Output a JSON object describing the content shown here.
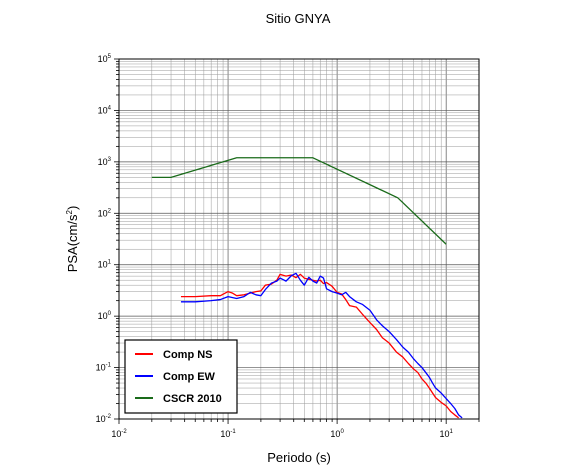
{
  "chart_data": {
    "type": "line",
    "title": "Sitio GNYA",
    "xlabel": "Periodo (s)",
    "ylabel_base": "PSA(cm/s",
    "ylabel_exp": "2",
    "ylabel_close": ")",
    "x_scale": "log",
    "y_scale": "log",
    "xlim": [
      0.01,
      20
    ],
    "ylim": [
      0.01,
      100000
    ],
    "grid": true,
    "legend_position": "bottom-left",
    "x_ticks": [
      {
        "base": "10",
        "exp": "-2",
        "value": 0.01
      },
      {
        "base": "10",
        "exp": "-1",
        "value": 0.1
      },
      {
        "base": "10",
        "exp": "0",
        "value": 1
      },
      {
        "base": "10",
        "exp": "1",
        "value": 10
      }
    ],
    "y_ticks": [
      {
        "base": "10",
        "exp": "-2",
        "value": 0.01
      },
      {
        "base": "10",
        "exp": "-1",
        "value": 0.1
      },
      {
        "base": "10",
        "exp": "0",
        "value": 1
      },
      {
        "base": "10",
        "exp": "1",
        "value": 10
      },
      {
        "base": "10",
        "exp": "2",
        "value": 100
      },
      {
        "base": "10",
        "exp": "3",
        "value": 1000
      },
      {
        "base": "10",
        "exp": "4",
        "value": 10000
      },
      {
        "base": "10",
        "exp": "5",
        "value": 100000
      }
    ],
    "series": [
      {
        "name": "Comp NS",
        "color": "#ff0000",
        "x": [
          0.037,
          0.05,
          0.07,
          0.085,
          0.1,
          0.11,
          0.12,
          0.14,
          0.16,
          0.18,
          0.2,
          0.22,
          0.25,
          0.28,
          0.3,
          0.34,
          0.38,
          0.42,
          0.46,
          0.5,
          0.55,
          0.6,
          0.65,
          0.7,
          0.75,
          0.8,
          0.9,
          1.0,
          1.1,
          1.2,
          1.3,
          1.5,
          1.7,
          2.0,
          2.3,
          2.6,
          3.0,
          3.5,
          4.0,
          4.5,
          5.0,
          5.5,
          6.0,
          6.5,
          7.0,
          7.5,
          8.0,
          9.0,
          10,
          11,
          12,
          13
        ],
        "y": [
          2.4,
          2.4,
          2.5,
          2.5,
          3.0,
          2.8,
          2.5,
          2.6,
          2.8,
          3.0,
          3.1,
          4.0,
          4.2,
          5.0,
          6.5,
          6.0,
          6.3,
          5.6,
          6.5,
          5.5,
          5.2,
          5.0,
          4.8,
          5.0,
          4.3,
          4.5,
          3.8,
          2.9,
          2.7,
          2.1,
          1.6,
          1.5,
          1.1,
          0.75,
          0.55,
          0.38,
          0.3,
          0.2,
          0.16,
          0.12,
          0.095,
          0.08,
          0.06,
          0.05,
          0.04,
          0.032,
          0.026,
          0.021,
          0.018,
          0.014,
          0.012,
          0.0105
        ]
      },
      {
        "name": "Comp EW",
        "color": "#0000ff",
        "x": [
          0.037,
          0.05,
          0.07,
          0.085,
          0.1,
          0.12,
          0.14,
          0.16,
          0.18,
          0.2,
          0.22,
          0.25,
          0.28,
          0.3,
          0.34,
          0.38,
          0.42,
          0.46,
          0.5,
          0.55,
          0.6,
          0.65,
          0.7,
          0.75,
          0.8,
          0.9,
          1.0,
          1.1,
          1.2,
          1.3,
          1.5,
          1.7,
          2.0,
          2.3,
          2.6,
          3.0,
          3.5,
          4.0,
          4.5,
          5.0,
          5.5,
          6.0,
          6.5,
          7.0,
          7.5,
          8.0,
          9.0,
          10,
          11,
          12,
          13,
          14
        ],
        "y": [
          1.9,
          1.9,
          2.0,
          2.1,
          2.4,
          2.2,
          2.4,
          2.9,
          2.6,
          2.5,
          3.3,
          4.4,
          4.8,
          5.5,
          4.8,
          6.1,
          6.8,
          5.0,
          4.0,
          5.7,
          4.8,
          4.4,
          6.0,
          5.5,
          3.4,
          3.0,
          2.8,
          2.6,
          2.9,
          2.4,
          1.9,
          1.7,
          1.3,
          0.85,
          0.65,
          0.5,
          0.35,
          0.25,
          0.2,
          0.15,
          0.12,
          0.1,
          0.08,
          0.065,
          0.05,
          0.04,
          0.032,
          0.025,
          0.02,
          0.016,
          0.012,
          0.0105
        ]
      },
      {
        "name": "CSCR 2010",
        "color": "#1a6b1a",
        "x": [
          0.02,
          0.03,
          0.12,
          0.6,
          3.6,
          10
        ],
        "y": [
          500,
          500,
          1200,
          1200,
          200,
          25
        ]
      }
    ]
  }
}
